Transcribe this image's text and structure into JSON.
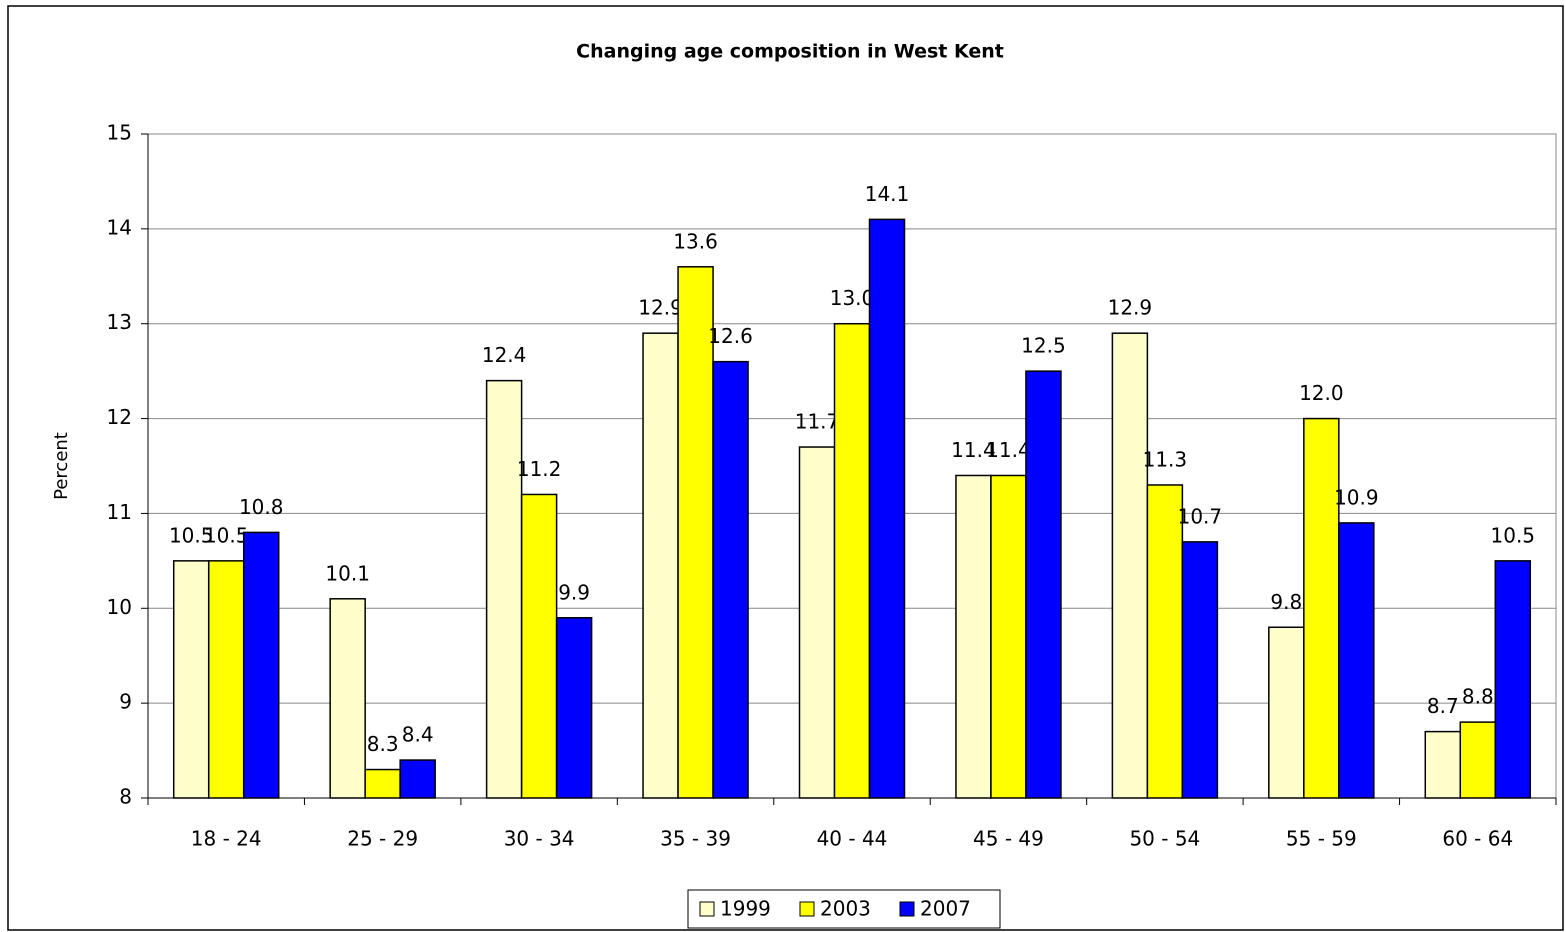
{
  "chart_data": {
    "type": "bar",
    "title": "Changing age composition in West Kent",
    "y_label": "Percent",
    "categories": [
      "18 - 24",
      "25 - 29",
      "30 - 34",
      "35 - 39",
      "40 - 44",
      "45 - 49",
      "50 - 54",
      "55 - 59",
      "60 - 64"
    ],
    "series": [
      {
        "name": "1999",
        "color": "#ffffcc",
        "values": [
          10.5,
          10.1,
          12.4,
          12.9,
          11.7,
          11.4,
          12.9,
          9.8,
          8.7
        ],
        "value_labels": [
          "10.5",
          "10.1",
          "12.4",
          "12.9",
          "11.7",
          "11.4",
          "12.9",
          "9.8",
          "8.7"
        ]
      },
      {
        "name": "2003",
        "color": "#ffff00",
        "values": [
          10.5,
          8.3,
          11.2,
          13.6,
          13.0,
          11.4,
          11.3,
          12.0,
          8.8
        ],
        "value_labels": [
          "10.5",
          "8.3",
          "11.2",
          "13.6",
          "13.0",
          "11.4",
          "11.3",
          "12.0",
          "8.8"
        ]
      },
      {
        "name": "2007",
        "color": "#0000ff",
        "values": [
          10.8,
          8.4,
          9.9,
          12.6,
          14.1,
          12.5,
          10.7,
          10.9,
          10.5
        ],
        "value_labels": [
          "10.8",
          "8.4",
          "9.9",
          "12.6",
          "14.1",
          "12.5",
          "10.7",
          "10.9",
          "10.5"
        ]
      }
    ],
    "ylim": [
      8,
      15
    ],
    "yticks": [
      8,
      9,
      10,
      11,
      12,
      13,
      14,
      15
    ],
    "grid": true,
    "legend": "bottom"
  }
}
